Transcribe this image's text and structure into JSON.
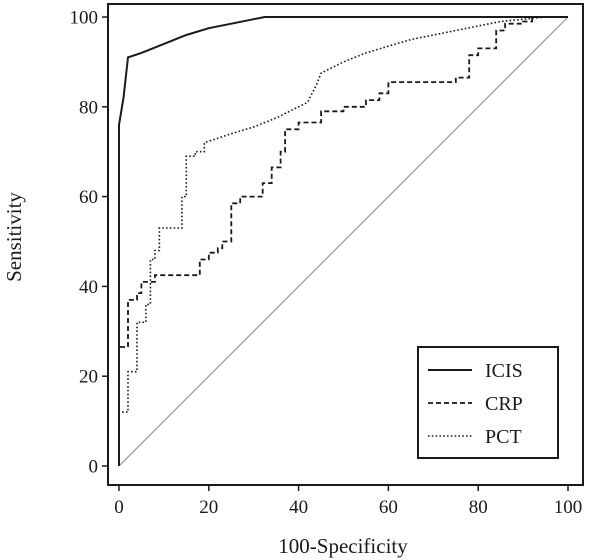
{
  "chart_data": {
    "type": "line",
    "xlabel": "100-Specificity",
    "ylabel": "Sensitivity",
    "xlim": [
      0,
      100
    ],
    "ylim": [
      0,
      100
    ],
    "xticks": [
      0,
      20,
      40,
      60,
      80,
      100
    ],
    "yticks": [
      0,
      20,
      40,
      60,
      80,
      100
    ],
    "grid": false,
    "legend_position": "bottom-right",
    "reference_line": [
      [
        0,
        0
      ],
      [
        100,
        100
      ]
    ],
    "series": [
      {
        "name": "ICIS",
        "style": "solid",
        "points": [
          [
            0,
            0
          ],
          [
            0,
            76
          ],
          [
            1,
            82
          ],
          [
            2,
            91
          ],
          [
            5,
            92
          ],
          [
            10,
            94
          ],
          [
            15,
            96
          ],
          [
            20,
            97.5
          ],
          [
            25,
            98.5
          ],
          [
            30,
            99.5
          ],
          [
            32.5,
            100
          ],
          [
            100,
            100
          ]
        ]
      },
      {
        "name": "CRP",
        "style": "dashed",
        "points": [
          [
            0,
            0
          ],
          [
            0,
            26.5
          ],
          [
            2,
            26.5
          ],
          [
            2,
            37
          ],
          [
            4,
            37
          ],
          [
            4,
            38.5
          ],
          [
            5,
            38.5
          ],
          [
            5,
            41
          ],
          [
            8,
            41
          ],
          [
            8,
            42.5
          ],
          [
            18,
            42.5
          ],
          [
            18,
            46
          ],
          [
            20,
            46
          ],
          [
            20,
            47.5
          ],
          [
            22,
            47.5
          ],
          [
            22,
            48.5
          ],
          [
            23,
            48.5
          ],
          [
            23,
            50
          ],
          [
            25,
            50
          ],
          [
            25,
            58.5
          ],
          [
            27,
            58.5
          ],
          [
            27,
            60
          ],
          [
            32,
            60
          ],
          [
            32,
            63
          ],
          [
            34,
            63
          ],
          [
            34,
            66.5
          ],
          [
            36,
            66.5
          ],
          [
            36,
            70
          ],
          [
            37,
            70
          ],
          [
            37,
            75
          ],
          [
            40,
            75
          ],
          [
            40,
            76.5
          ],
          [
            45,
            76.5
          ],
          [
            45,
            79
          ],
          [
            50,
            79
          ],
          [
            50,
            80
          ],
          [
            55,
            80
          ],
          [
            55,
            81.5
          ],
          [
            58,
            81.5
          ],
          [
            58,
            83
          ],
          [
            60,
            83
          ],
          [
            60,
            85.5
          ],
          [
            75,
            85.5
          ],
          [
            75,
            86.5
          ],
          [
            78,
            86.5
          ],
          [
            78,
            91.5
          ],
          [
            80,
            91.5
          ],
          [
            80,
            93
          ],
          [
            84,
            93
          ],
          [
            84,
            97
          ],
          [
            86,
            97
          ],
          [
            86,
            98.5
          ],
          [
            90,
            98.5
          ],
          [
            90,
            99
          ],
          [
            92,
            99
          ],
          [
            92,
            100
          ],
          [
            100,
            100
          ]
        ]
      },
      {
        "name": "PCT",
        "style": "dotted",
        "points": [
          [
            0,
            0
          ],
          [
            0,
            12
          ],
          [
            2,
            12
          ],
          [
            2,
            21
          ],
          [
            4,
            21
          ],
          [
            4,
            32
          ],
          [
            6,
            32
          ],
          [
            6,
            36
          ],
          [
            7,
            36
          ],
          [
            7,
            46
          ],
          [
            8,
            46
          ],
          [
            8,
            48
          ],
          [
            9,
            48
          ],
          [
            9,
            53
          ],
          [
            14,
            53
          ],
          [
            14,
            60
          ],
          [
            15,
            60
          ],
          [
            15,
            69
          ],
          [
            17,
            69
          ],
          [
            17,
            70
          ],
          [
            19,
            70
          ],
          [
            19,
            72
          ],
          [
            22,
            73
          ],
          [
            25,
            74
          ],
          [
            30,
            75.5
          ],
          [
            35,
            77.5
          ],
          [
            40,
            80
          ],
          [
            42,
            81
          ],
          [
            44,
            85
          ],
          [
            45,
            87.5
          ],
          [
            47,
            88.5
          ],
          [
            50,
            90
          ],
          [
            55,
            92
          ],
          [
            60,
            93.5
          ],
          [
            65,
            95
          ],
          [
            70,
            96
          ],
          [
            75,
            97
          ],
          [
            80,
            98
          ],
          [
            85,
            99
          ],
          [
            90,
            99.5
          ],
          [
            95,
            100
          ],
          [
            100,
            100
          ]
        ]
      }
    ]
  }
}
